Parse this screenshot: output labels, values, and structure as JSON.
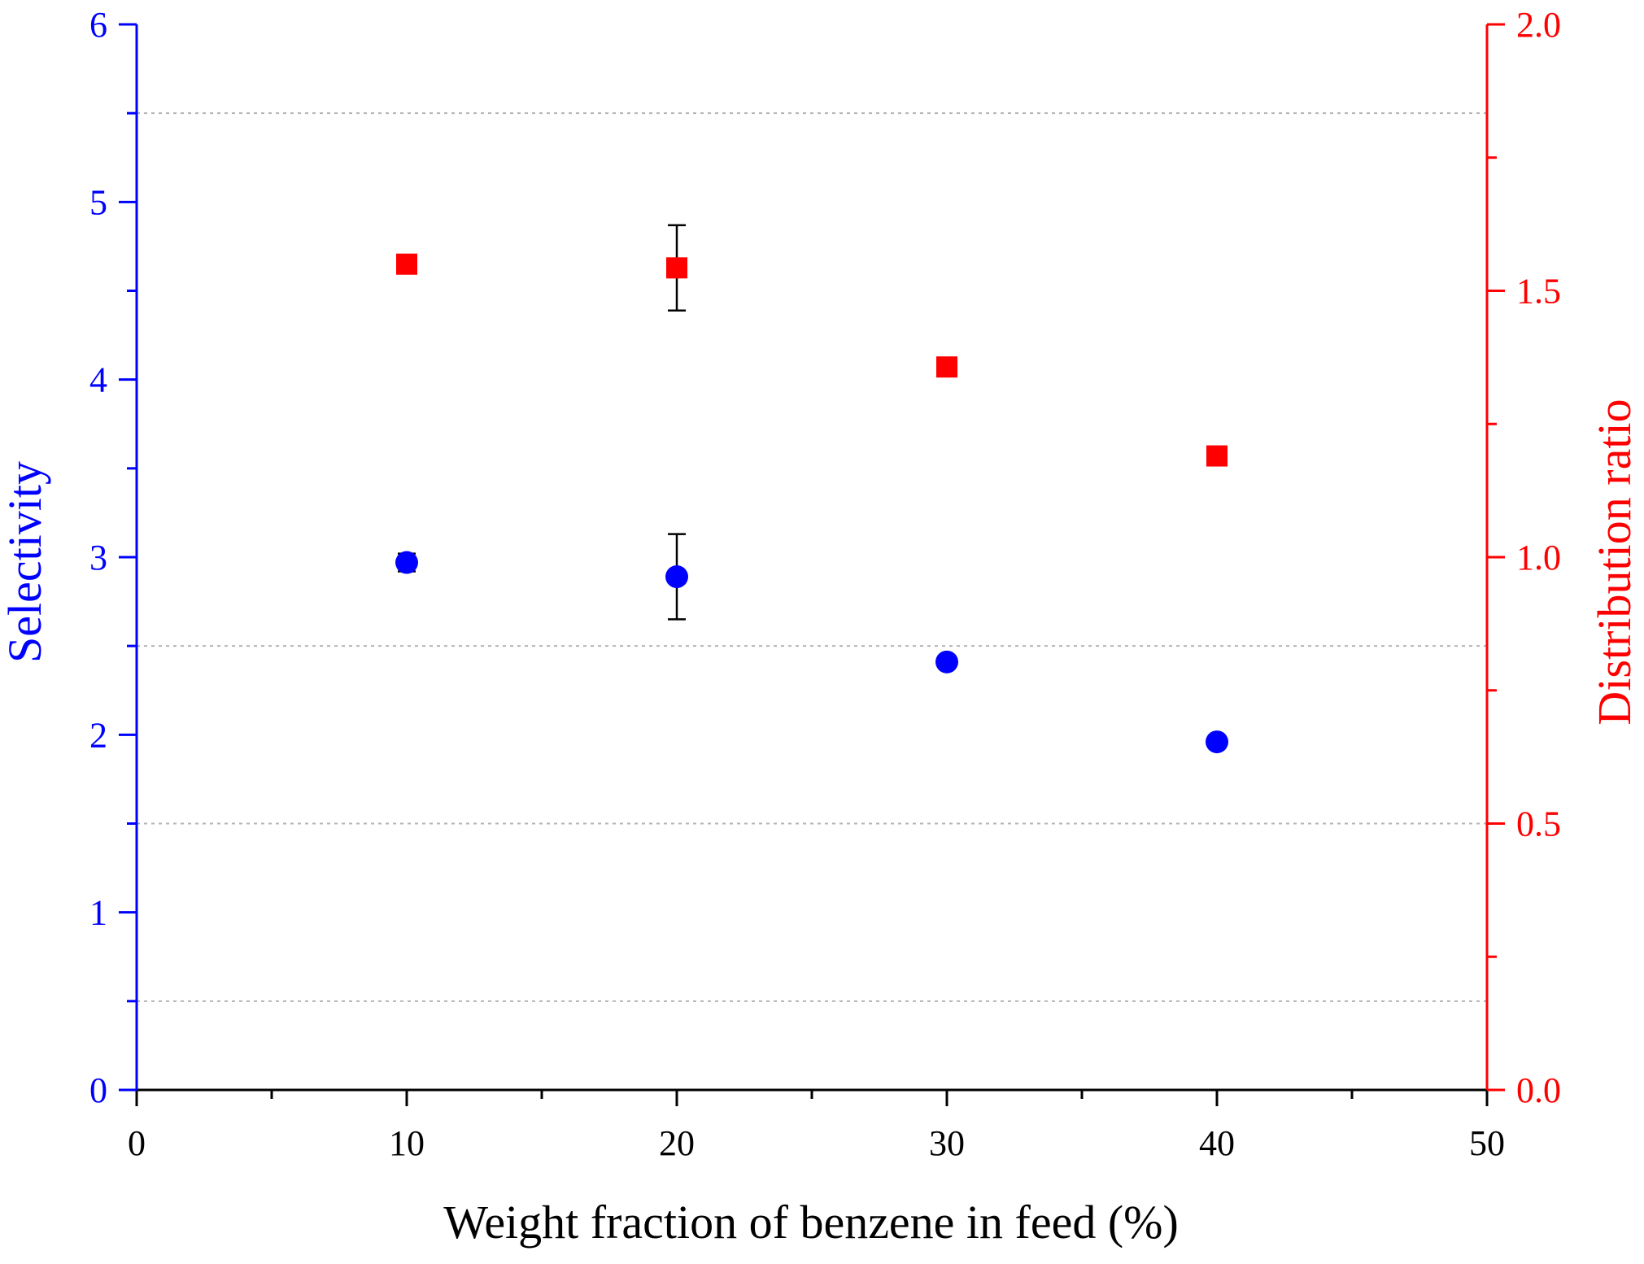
{
  "chart_data": {
    "type": "scatter",
    "xlabel": "Weight fraction of benzene in feed (%)",
    "ylabel_left": "Selectivity",
    "ylabel_right": "Distribution ratio",
    "x_range": [
      0,
      50
    ],
    "y_left_range": [
      0,
      6
    ],
    "y_right_range": [
      0.0,
      2.0
    ],
    "x_ticks": [
      "0",
      "10",
      "20",
      "30",
      "40",
      "50"
    ],
    "y_left_ticks": [
      "0",
      "1",
      "2",
      "3",
      "4",
      "5",
      "6"
    ],
    "y_right_ticks": [
      "0.0",
      "0.5",
      "1.0",
      "1.5",
      "2.0"
    ],
    "grid": "horizontal dotted at 0.5, 1.5, 2.5 and 5.5 (left axis)",
    "colors": {
      "left_axis": "#0000ff",
      "right_axis": "#ff0000",
      "grid": "#b4b4b4",
      "error_bar": "#000000"
    },
    "series": [
      {
        "name": "Selectivity",
        "axis": "left",
        "marker": "circle",
        "color": "#0000ff",
        "x": [
          10,
          20,
          30,
          40
        ],
        "y": [
          2.97,
          2.89,
          2.41,
          1.96
        ],
        "err": [
          0.05,
          0.24,
          0.02,
          0.02
        ]
      },
      {
        "name": "Distribution ratio",
        "axis": "right",
        "marker": "square",
        "color": "#ff0000",
        "x": [
          10,
          20,
          30,
          40
        ],
        "y": [
          1.55,
          1.543,
          1.357,
          1.19
        ],
        "err": [
          0.01,
          0.08,
          0.01,
          0.01
        ]
      }
    ]
  }
}
